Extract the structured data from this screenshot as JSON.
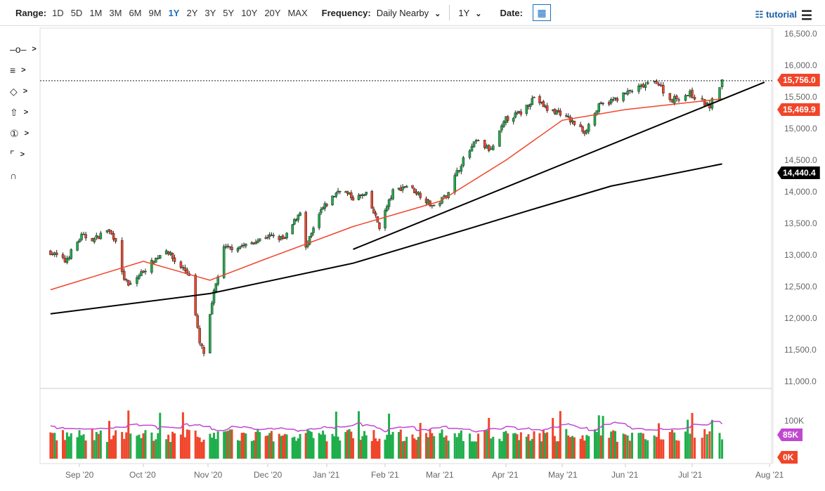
{
  "toolbar": {
    "range_label": "Range:",
    "ranges": [
      "1D",
      "5D",
      "1M",
      "3M",
      "6M",
      "9M",
      "1Y",
      "2Y",
      "3Y",
      "5Y",
      "10Y",
      "20Y",
      "MAX"
    ],
    "active_range": "1Y",
    "frequency_label": "Frequency:",
    "frequency_value": "Daily Nearby",
    "period_value": "1Y",
    "date_label": "Date:",
    "tutorial_label": "tutorial"
  },
  "side_tools": [
    "crosshair-icon",
    "fibonacci-icon",
    "shapes-icon",
    "arrow-up-icon",
    "number-marker-icon",
    "parallel-lines-icon",
    "magnet-icon"
  ],
  "chart_data": {
    "type": "candlestick",
    "y_ticks": [
      "16,500.0",
      "16,000.0",
      "15,500.0",
      "15,000.0",
      "14,500.0",
      "14,000.0",
      "13,500.0",
      "13,000.0",
      "12,500.0",
      "12,000.0",
      "11,500.0",
      "11,000.0"
    ],
    "ylim": [
      11000,
      16500
    ],
    "x_ticks": [
      "Sep '20",
      "Oct '20",
      "Nov '20",
      "Dec '20",
      "Jan '21",
      "Feb '21",
      "Mar '21",
      "Apr '21",
      "May '21",
      "Jun '21",
      "Jul '21",
      "Aug '21"
    ],
    "close_keyframes": [
      [
        "2020-08-18",
        13050
      ],
      [
        "2020-08-25",
        12900
      ],
      [
        "2020-09-02",
        13300
      ],
      [
        "2020-09-08",
        13250
      ],
      [
        "2020-09-14",
        13400
      ],
      [
        "2020-09-18",
        13250
      ],
      [
        "2020-09-21",
        12700
      ],
      [
        "2020-09-24",
        12500
      ],
      [
        "2020-10-01",
        12750
      ],
      [
        "2020-10-12",
        13100
      ],
      [
        "2020-10-16",
        12900
      ],
      [
        "2020-10-23",
        12700
      ],
      [
        "2020-10-28",
        11600
      ],
      [
        "2020-10-30",
        11450
      ],
      [
        "2020-11-04",
        12400
      ],
      [
        "2020-11-09",
        13100
      ],
      [
        "2020-11-20",
        13150
      ],
      [
        "2020-12-01",
        13300
      ],
      [
        "2020-12-10",
        13250
      ],
      [
        "2020-12-18",
        13700
      ],
      [
        "2020-12-21",
        13100
      ],
      [
        "2020-12-29",
        13700
      ],
      [
        "2021-01-08",
        14050
      ],
      [
        "2021-01-15",
        13900
      ],
      [
        "2021-01-22",
        13950
      ],
      [
        "2021-01-29",
        13450
      ],
      [
        "2021-02-05",
        14000
      ],
      [
        "2021-02-12",
        14100
      ],
      [
        "2021-02-19",
        13950
      ],
      [
        "2021-02-26",
        13750
      ],
      [
        "2021-03-04",
        13950
      ],
      [
        "2021-03-11",
        14450
      ],
      [
        "2021-03-18",
        14800
      ],
      [
        "2021-03-25",
        14650
      ],
      [
        "2021-04-01",
        15150
      ],
      [
        "2021-04-09",
        15250
      ],
      [
        "2021-04-16",
        15500
      ],
      [
        "2021-04-23",
        15300
      ],
      [
        "2021-04-30",
        15250
      ],
      [
        "2021-05-12",
        14950
      ],
      [
        "2021-05-19",
        15350
      ],
      [
        "2021-05-26",
        15450
      ],
      [
        "2021-06-04",
        15600
      ],
      [
        "2021-06-15",
        15750
      ],
      [
        "2021-06-21",
        15450
      ],
      [
        "2021-06-30",
        15550
      ],
      [
        "2021-07-08",
        15350
      ],
      [
        "2021-07-13",
        15756
      ]
    ],
    "series": [
      {
        "name": "50-day MA",
        "color": "#f0452a",
        "points": [
          [
            "2020-08-18",
            12450
          ],
          [
            "2020-10-01",
            12900
          ],
          [
            "2020-11-02",
            12600
          ],
          [
            "2020-12-01",
            12950
          ],
          [
            "2021-01-15",
            13450
          ],
          [
            "2021-03-01",
            13850
          ],
          [
            "2021-04-01",
            14500
          ],
          [
            "2021-05-01",
            15130
          ],
          [
            "2021-06-01",
            15300
          ],
          [
            "2021-07-13",
            15469.9
          ]
        ]
      },
      {
        "name": "200-day MA",
        "color": "#000000",
        "points": [
          [
            "2020-08-18",
            12070
          ],
          [
            "2020-11-02",
            12390
          ],
          [
            "2021-01-15",
            12870
          ],
          [
            "2021-03-15",
            13420
          ],
          [
            "2021-04-15",
            13720
          ],
          [
            "2021-05-25",
            14090
          ],
          [
            "2021-07-13",
            14440.4
          ]
        ]
      },
      {
        "name": "trendline",
        "color": "#000000",
        "points": [
          [
            "2021-01-15",
            13090
          ],
          [
            "2021-07-30",
            15733
          ]
        ]
      }
    ],
    "last_price": "15,756.0",
    "ma50_label": "15,469.9",
    "ma200_label": "14,440.4",
    "volume": {
      "y_tick": "100K",
      "avg_label": "85K",
      "zero_label": "0K",
      "avg": 85000,
      "ylim": [
        0,
        100000
      ]
    }
  },
  "colors": {
    "up": "#1fae4b",
    "down": "#f0452a",
    "volume_avg": "#c048d0",
    "accent": "#1a6fc0"
  }
}
